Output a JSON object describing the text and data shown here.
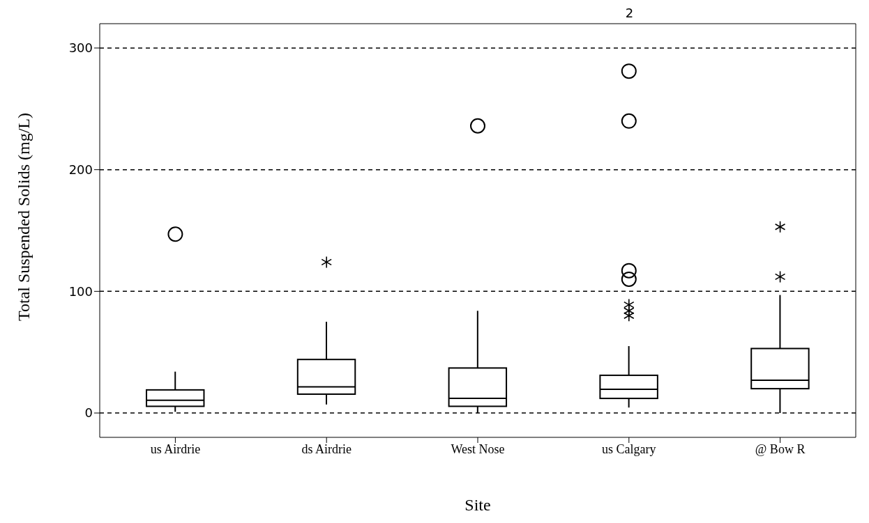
{
  "chart_data": {
    "type": "box",
    "xlabel": "Site",
    "ylabel": "Total Suspended Solids (mg/L)",
    "categories": [
      "us Airdrie",
      "ds Airdrie",
      "West Nose",
      "us Calgary",
      "@ Bow R"
    ],
    "color": "#000000",
    "marker": "circle",
    "boxes": [
      {
        "low": 1,
        "q1": 5.5,
        "median": 10.5,
        "q3": 19,
        "high": 34,
        "outliers": [
          147
        ]
      },
      {
        "low": 7,
        "q1": 15.5,
        "median": 21.5,
        "q3": 44,
        "high": 75
      },
      {
        "low": 0,
        "q1": 5.5,
        "median": 12,
        "q3": 37,
        "high": 84,
        "outliers": [
          236
        ]
      },
      {
        "low": 4.5,
        "q1": 12,
        "median": 19.5,
        "q3": 31,
        "high": 55,
        "outliers": [
          281,
          240,
          117,
          110
        ]
      },
      {
        "low": 0,
        "q1": 20,
        "median": 27,
        "q3": 53,
        "high": 97
      }
    ],
    "series": [
      {
        "type": "scatter",
        "marker": "cross",
        "color": "#000000",
        "x": [
          "ds Airdrie",
          "us Calgary",
          "us Calgary",
          "us Calgary",
          "@ Bow R",
          "@ Bow R"
        ],
        "values": [
          124,
          89,
          84,
          80,
          153,
          112
        ]
      }
    ],
    "ylim": [
      -20,
      320
    ],
    "yticks": [
      0,
      100,
      200,
      300
    ],
    "grid": "y",
    "line_style": "dashed",
    "annotations": [
      "2"
    ]
  }
}
